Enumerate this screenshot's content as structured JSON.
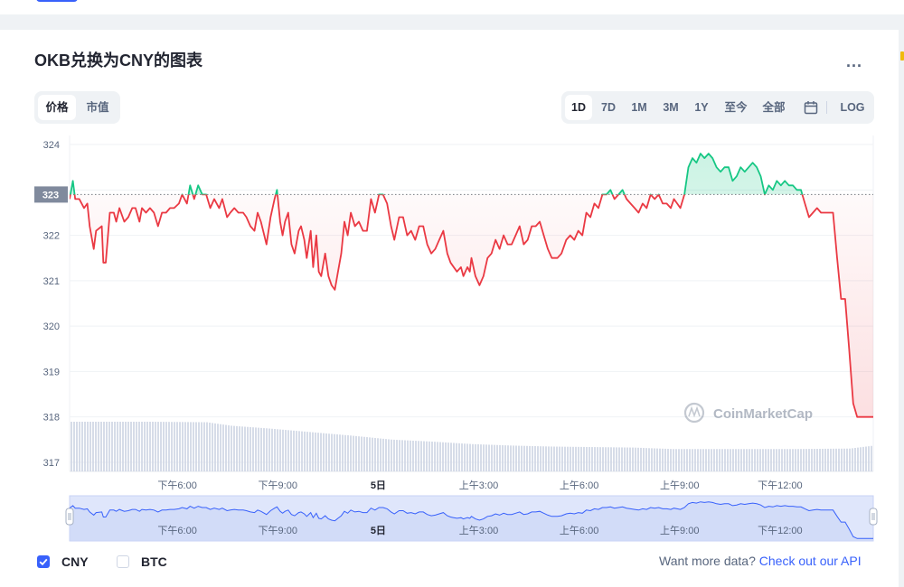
{
  "header": {
    "title": "OKB兑换为CNY的图表",
    "more_label": "..."
  },
  "view_toggle": [
    {
      "label": "价格",
      "active": true
    },
    {
      "label": "市值",
      "active": false
    }
  ],
  "ranges": [
    {
      "label": "1D",
      "active": true
    },
    {
      "label": "7D",
      "active": false
    },
    {
      "label": "1M",
      "active": false
    },
    {
      "label": "3M",
      "active": false
    },
    {
      "label": "1Y",
      "active": false
    },
    {
      "label": "至今",
      "active": false
    },
    {
      "label": "全部",
      "active": false
    },
    {
      "label": "LOG",
      "active": false
    }
  ],
  "watermark": "CoinMarketCap",
  "legend": {
    "cny": {
      "label": "CNY",
      "checked": true
    },
    "btc": {
      "label": "BTC",
      "checked": false
    }
  },
  "footer": {
    "prompt": "Want more data?",
    "link": "Check out our API"
  },
  "colors": {
    "up": "#16c784",
    "down": "#ea3943",
    "accent": "#3861fb",
    "volume": "#cfd6e4",
    "navigator_fill": "#dfe6fb"
  },
  "chart_data": {
    "type": "line",
    "ylim": [
      316.8,
      324.2
    ],
    "y_ticks": [
      317,
      318,
      319,
      320,
      321,
      322,
      323,
      324
    ],
    "baseline": 322.9,
    "baseline_label": "323",
    "x_ticks": [
      {
        "label": "下午6:00",
        "x": 0.125,
        "bold": false
      },
      {
        "label": "下午9:00",
        "x": 0.25,
        "bold": false
      },
      {
        "label": "5日",
        "x": 0.375,
        "bold": true
      },
      {
        "label": "上午3:00",
        "x": 0.5,
        "bold": false
      },
      {
        "label": "上午6:00",
        "x": 0.625,
        "bold": false
      },
      {
        "label": "上午9:00",
        "x": 0.75,
        "bold": false
      },
      {
        "label": "下午12:00",
        "x": 0.875,
        "bold": false
      }
    ],
    "price": [
      [
        0.0,
        322.8
      ],
      [
        0.004,
        323.2
      ],
      [
        0.007,
        322.8
      ],
      [
        0.012,
        322.8
      ],
      [
        0.018,
        322.6
      ],
      [
        0.022,
        322.7
      ],
      [
        0.025,
        322.2
      ],
      [
        0.03,
        321.7
      ],
      [
        0.033,
        322.1
      ],
      [
        0.04,
        322.2
      ],
      [
        0.042,
        321.4
      ],
      [
        0.045,
        321.4
      ],
      [
        0.05,
        322.5
      ],
      [
        0.055,
        322.5
      ],
      [
        0.058,
        322.3
      ],
      [
        0.062,
        322.6
      ],
      [
        0.068,
        322.3
      ],
      [
        0.073,
        322.4
      ],
      [
        0.078,
        322.6
      ],
      [
        0.082,
        322.6
      ],
      [
        0.087,
        322.3
      ],
      [
        0.09,
        322.6
      ],
      [
        0.095,
        322.5
      ],
      [
        0.1,
        322.6
      ],
      [
        0.105,
        322.5
      ],
      [
        0.11,
        322.2
      ],
      [
        0.115,
        322.5
      ],
      [
        0.12,
        322.5
      ],
      [
        0.125,
        322.6
      ],
      [
        0.13,
        322.6
      ],
      [
        0.136,
        322.7
      ],
      [
        0.14,
        322.9
      ],
      [
        0.146,
        322.7
      ],
      [
        0.15,
        323.1
      ],
      [
        0.155,
        322.8
      ],
      [
        0.16,
        323.1
      ],
      [
        0.165,
        322.9
      ],
      [
        0.17,
        322.9
      ],
      [
        0.175,
        322.6
      ],
      [
        0.18,
        322.8
      ],
      [
        0.186,
        322.6
      ],
      [
        0.19,
        322.8
      ],
      [
        0.196,
        322.4
      ],
      [
        0.2,
        322.5
      ],
      [
        0.205,
        322.6
      ],
      [
        0.21,
        322.5
      ],
      [
        0.216,
        322.5
      ],
      [
        0.22,
        322.4
      ],
      [
        0.225,
        322.2
      ],
      [
        0.23,
        322.1
      ],
      [
        0.234,
        322.5
      ],
      [
        0.238,
        322.3
      ],
      [
        0.245,
        321.8
      ],
      [
        0.25,
        322.4
      ],
      [
        0.255,
        322.8
      ],
      [
        0.258,
        323.0
      ],
      [
        0.262,
        322.3
      ],
      [
        0.265,
        322.0
      ],
      [
        0.268,
        322.3
      ],
      [
        0.272,
        322.5
      ],
      [
        0.276,
        321.8
      ],
      [
        0.28,
        321.6
      ],
      [
        0.285,
        322.1
      ],
      [
        0.288,
        322.2
      ],
      [
        0.292,
        321.9
      ],
      [
        0.295,
        321.5
      ],
      [
        0.3,
        322.1
      ],
      [
        0.303,
        321.3
      ],
      [
        0.307,
        322.0
      ],
      [
        0.31,
        321.2
      ],
      [
        0.313,
        321.1
      ],
      [
        0.318,
        321.6
      ],
      [
        0.322,
        321.1
      ],
      [
        0.326,
        320.9
      ],
      [
        0.33,
        320.8
      ],
      [
        0.334,
        321.2
      ],
      [
        0.338,
        321.6
      ],
      [
        0.342,
        322.3
      ],
      [
        0.346,
        322.0
      ],
      [
        0.35,
        322.5
      ],
      [
        0.355,
        322.2
      ],
      [
        0.36,
        322.3
      ],
      [
        0.365,
        322.1
      ],
      [
        0.37,
        322.1
      ],
      [
        0.375,
        322.8
      ],
      [
        0.38,
        322.5
      ],
      [
        0.385,
        322.9
      ],
      [
        0.39,
        322.9
      ],
      [
        0.395,
        322.7
      ],
      [
        0.4,
        322.2
      ],
      [
        0.404,
        321.9
      ],
      [
        0.41,
        322.4
      ],
      [
        0.415,
        322.4
      ],
      [
        0.42,
        322.0
      ],
      [
        0.425,
        322.1
      ],
      [
        0.43,
        321.9
      ],
      [
        0.435,
        322.2
      ],
      [
        0.44,
        322.2
      ],
      [
        0.445,
        321.8
      ],
      [
        0.45,
        321.6
      ],
      [
        0.455,
        321.7
      ],
      [
        0.46,
        321.9
      ],
      [
        0.465,
        322.1
      ],
      [
        0.47,
        321.6
      ],
      [
        0.474,
        321.4
      ],
      [
        0.478,
        321.3
      ],
      [
        0.482,
        321.2
      ],
      [
        0.487,
        321.3
      ],
      [
        0.49,
        321.1
      ],
      [
        0.495,
        321.3
      ],
      [
        0.498,
        321.2
      ],
      [
        0.5,
        321.5
      ],
      [
        0.505,
        321.1
      ],
      [
        0.51,
        320.9
      ],
      [
        0.515,
        321.1
      ],
      [
        0.52,
        321.5
      ],
      [
        0.525,
        321.6
      ],
      [
        0.53,
        321.9
      ],
      [
        0.535,
        321.7
      ],
      [
        0.54,
        322.0
      ],
      [
        0.545,
        321.8
      ],
      [
        0.55,
        321.8
      ],
      [
        0.555,
        322.0
      ],
      [
        0.56,
        322.2
      ],
      [
        0.565,
        321.8
      ],
      [
        0.57,
        321.9
      ],
      [
        0.575,
        322.2
      ],
      [
        0.58,
        322.2
      ],
      [
        0.585,
        322.3
      ],
      [
        0.59,
        322.0
      ],
      [
        0.595,
        321.7
      ],
      [
        0.6,
        321.5
      ],
      [
        0.607,
        321.5
      ],
      [
        0.612,
        321.6
      ],
      [
        0.618,
        321.9
      ],
      [
        0.623,
        322.0
      ],
      [
        0.628,
        321.9
      ],
      [
        0.633,
        322.1
      ],
      [
        0.638,
        322.0
      ],
      [
        0.643,
        322.5
      ],
      [
        0.648,
        322.4
      ],
      [
        0.653,
        322.7
      ],
      [
        0.658,
        322.6
      ],
      [
        0.663,
        322.9
      ],
      [
        0.668,
        322.9
      ],
      [
        0.673,
        323.0
      ],
      [
        0.678,
        322.8
      ],
      [
        0.683,
        322.9
      ],
      [
        0.688,
        323.0
      ],
      [
        0.693,
        322.8
      ],
      [
        0.698,
        322.7
      ],
      [
        0.703,
        322.6
      ],
      [
        0.708,
        322.5
      ],
      [
        0.713,
        322.7
      ],
      [
        0.718,
        322.6
      ],
      [
        0.723,
        322.9
      ],
      [
        0.728,
        322.8
      ],
      [
        0.733,
        322.9
      ],
      [
        0.738,
        322.7
      ],
      [
        0.743,
        322.7
      ],
      [
        0.748,
        322.6
      ],
      [
        0.752,
        322.8
      ],
      [
        0.756,
        322.7
      ],
      [
        0.76,
        322.6
      ],
      [
        0.765,
        322.9
      ],
      [
        0.77,
        323.5
      ],
      [
        0.775,
        323.7
      ],
      [
        0.78,
        323.6
      ],
      [
        0.785,
        323.8
      ],
      [
        0.79,
        323.7
      ],
      [
        0.795,
        323.8
      ],
      [
        0.8,
        323.7
      ],
      [
        0.805,
        323.5
      ],
      [
        0.81,
        323.4
      ],
      [
        0.815,
        323.5
      ],
      [
        0.82,
        323.5
      ],
      [
        0.825,
        323.2
      ],
      [
        0.83,
        323.3
      ],
      [
        0.835,
        323.5
      ],
      [
        0.84,
        323.4
      ],
      [
        0.845,
        323.5
      ],
      [
        0.85,
        323.6
      ],
      [
        0.855,
        323.5
      ],
      [
        0.86,
        323.3
      ],
      [
        0.865,
        322.9
      ],
      [
        0.87,
        323.1
      ],
      [
        0.875,
        323.0
      ],
      [
        0.88,
        323.2
      ],
      [
        0.885,
        323.1
      ],
      [
        0.89,
        323.2
      ],
      [
        0.895,
        323.1
      ],
      [
        0.9,
        323.1
      ],
      [
        0.905,
        323.0
      ],
      [
        0.91,
        323.0
      ],
      [
        0.915,
        322.7
      ],
      [
        0.92,
        322.4
      ],
      [
        0.925,
        322.5
      ],
      [
        0.93,
        322.6
      ],
      [
        0.935,
        322.5
      ],
      [
        0.94,
        322.5
      ],
      [
        0.945,
        322.5
      ],
      [
        0.95,
        322.5
      ],
      [
        0.955,
        321.5
      ],
      [
        0.96,
        320.6
      ],
      [
        0.965,
        320.6
      ],
      [
        0.97,
        319.5
      ],
      [
        0.975,
        318.3
      ],
      [
        0.98,
        318.0
      ],
      [
        1.0,
        318.0
      ]
    ],
    "volume": [
      [
        0.0,
        1.0
      ],
      [
        0.1,
        1.0
      ],
      [
        0.17,
        0.99
      ],
      [
        0.2,
        0.92
      ],
      [
        0.25,
        0.86
      ],
      [
        0.3,
        0.79
      ],
      [
        0.35,
        0.72
      ],
      [
        0.4,
        0.64
      ],
      [
        0.45,
        0.6
      ],
      [
        0.5,
        0.55
      ],
      [
        0.55,
        0.52
      ],
      [
        0.6,
        0.5
      ],
      [
        0.7,
        0.48
      ],
      [
        0.75,
        0.45
      ],
      [
        0.8,
        0.45
      ],
      [
        0.9,
        0.45
      ],
      [
        0.97,
        0.46
      ],
      [
        1.0,
        0.52
      ]
    ]
  }
}
